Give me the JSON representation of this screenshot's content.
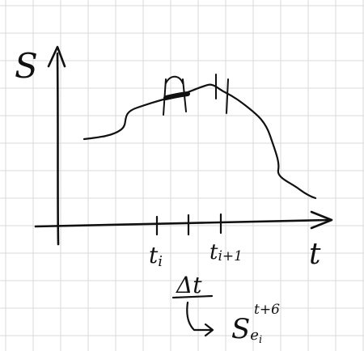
{
  "axes": {
    "y_label": "S",
    "x_label": "t"
  },
  "ticks": {
    "t_i": {
      "base": "t",
      "sub": "i"
    },
    "t_i_plus_1": {
      "base": "t",
      "sub": "i+1"
    }
  },
  "note": {
    "delta": "Δt",
    "target_base": "S",
    "target_sub": "e",
    "target_subsub": "i",
    "target_sup": "t+6"
  },
  "colors": {
    "ink": "#111111",
    "grid": "#d9d9d9",
    "background": "#ffffff"
  }
}
